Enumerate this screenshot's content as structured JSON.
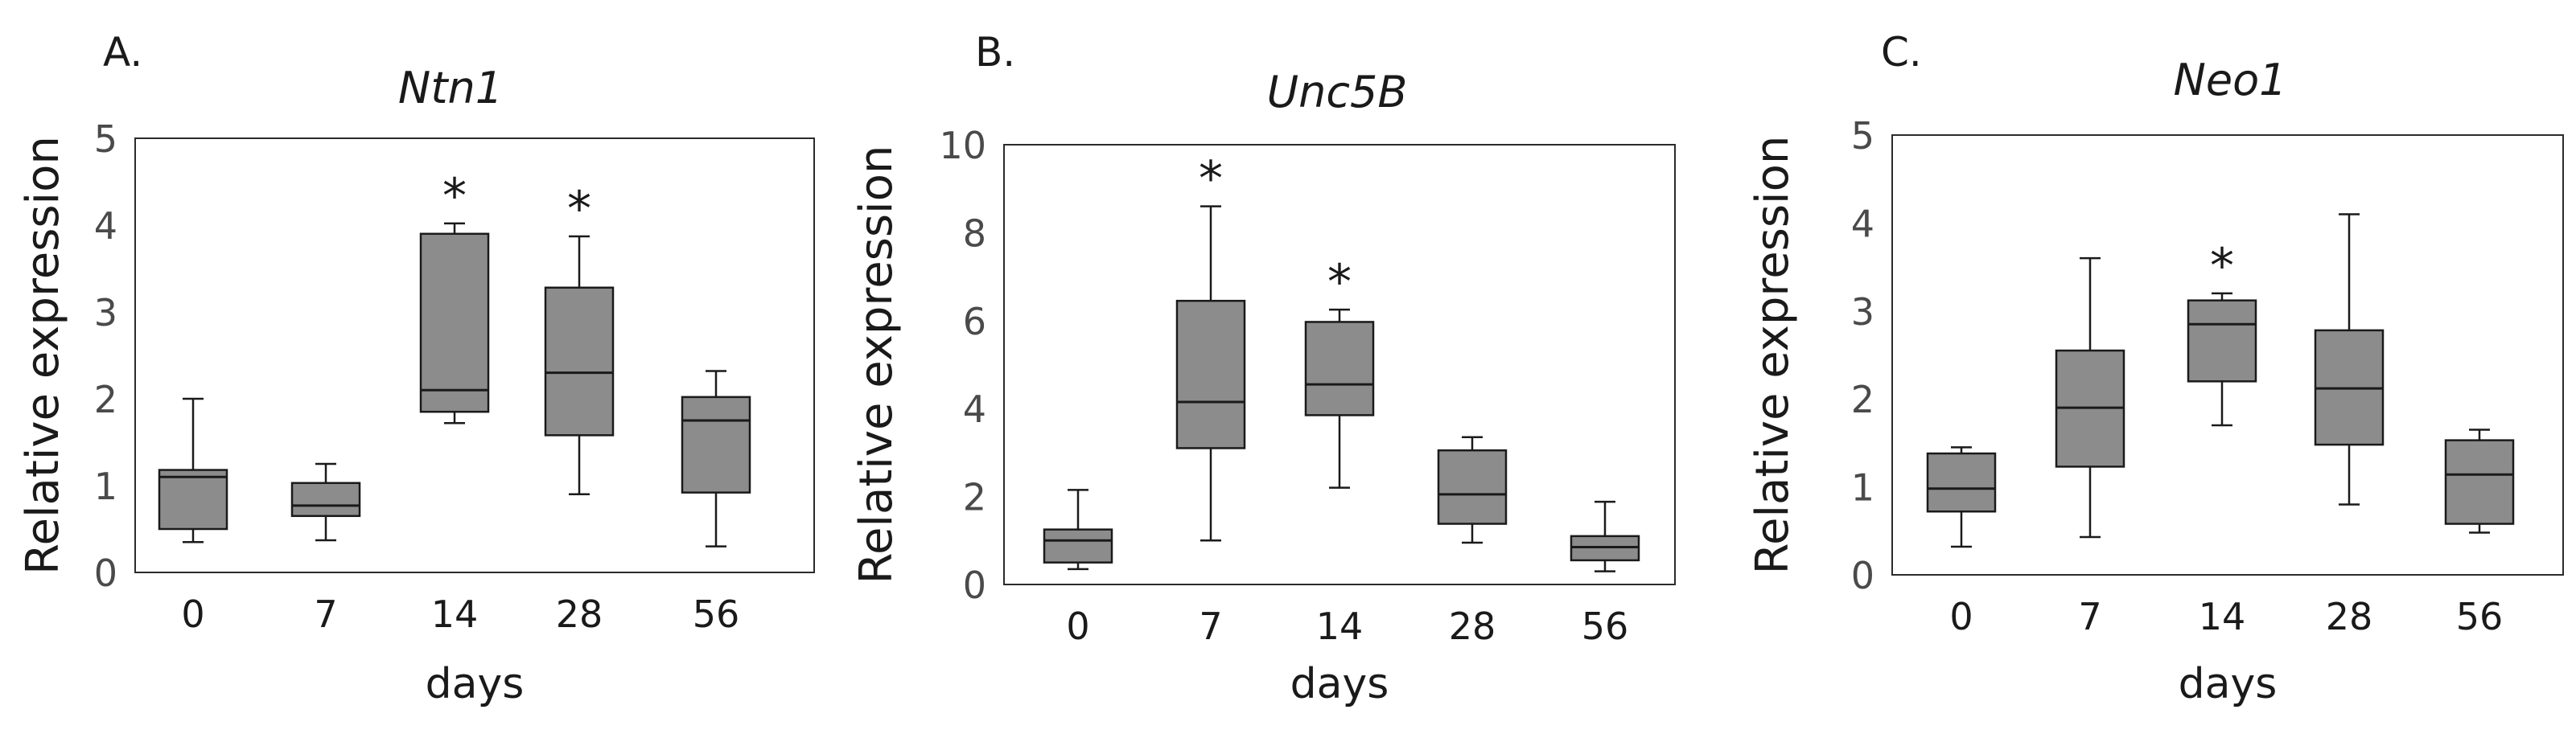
{
  "chart_data": [
    {
      "type": "box",
      "panel_label": "A.",
      "title": "Ntn1",
      "xlabel": "days",
      "ylabel": "Relative expression",
      "ylim": [
        0,
        5
      ],
      "yticks": [
        0,
        1,
        2,
        3,
        4,
        5
      ],
      "categories": [
        "0",
        "7",
        "14",
        "28",
        "56"
      ],
      "boxes": [
        {
          "min": 0.35,
          "q1": 0.5,
          "median": 1.1,
          "q3": 1.18,
          "max": 2.0,
          "sig": ""
        },
        {
          "min": 0.37,
          "q1": 0.65,
          "median": 0.77,
          "q3": 1.03,
          "max": 1.25,
          "sig": ""
        },
        {
          "min": 1.72,
          "q1": 1.85,
          "median": 2.1,
          "q3": 3.9,
          "max": 4.02,
          "sig": "*"
        },
        {
          "min": 0.9,
          "q1": 1.58,
          "median": 2.3,
          "q3": 3.28,
          "max": 3.87,
          "sig": "*"
        },
        {
          "min": 0.3,
          "q1": 0.92,
          "median": 1.75,
          "q3": 2.02,
          "max": 2.32,
          "sig": ""
        }
      ],
      "box_color": "#8c8c8c",
      "frame": true
    },
    {
      "type": "box",
      "panel_label": "B.",
      "title": "Unc5B",
      "xlabel": "days",
      "ylabel": "Relative expression",
      "ylim": [
        0,
        10
      ],
      "yticks": [
        0,
        2,
        4,
        6,
        8,
        10
      ],
      "categories": [
        "0",
        "7",
        "14",
        "28",
        "56"
      ],
      "boxes": [
        {
          "min": 0.35,
          "q1": 0.5,
          "median": 1.0,
          "q3": 1.25,
          "max": 2.15,
          "sig": ""
        },
        {
          "min": 1.0,
          "q1": 3.1,
          "median": 4.15,
          "q3": 6.45,
          "max": 8.6,
          "sig": "*"
        },
        {
          "min": 2.2,
          "q1": 3.85,
          "median": 4.55,
          "q3": 5.97,
          "max": 6.25,
          "sig": "*"
        },
        {
          "min": 0.95,
          "q1": 1.38,
          "median": 2.05,
          "q3": 3.05,
          "max": 3.35,
          "sig": ""
        },
        {
          "min": 0.3,
          "q1": 0.55,
          "median": 0.85,
          "q3": 1.1,
          "max": 1.88,
          "sig": ""
        }
      ],
      "box_color": "#8c8c8c",
      "frame": true
    },
    {
      "type": "box",
      "panel_label": "C.",
      "title": "Neo1",
      "xlabel": "days",
      "ylabel": "Relative expression",
      "ylim": [
        0,
        5
      ],
      "yticks": [
        0,
        1,
        2,
        3,
        4,
        5
      ],
      "categories": [
        "0",
        "7",
        "14",
        "28",
        "56"
      ],
      "boxes": [
        {
          "min": 0.32,
          "q1": 0.72,
          "median": 0.98,
          "q3": 1.38,
          "max": 1.45,
          "sig": ""
        },
        {
          "min": 0.43,
          "q1": 1.23,
          "median": 1.9,
          "q3": 2.55,
          "max": 3.6,
          "sig": ""
        },
        {
          "min": 1.7,
          "q1": 2.2,
          "median": 2.85,
          "q3": 3.12,
          "max": 3.2,
          "sig": "*"
        },
        {
          "min": 0.8,
          "q1": 1.48,
          "median": 2.12,
          "q3": 2.78,
          "max": 4.1,
          "sig": ""
        },
        {
          "min": 0.48,
          "q1": 0.58,
          "median": 1.14,
          "q3": 1.53,
          "max": 1.65,
          "sig": ""
        }
      ],
      "box_color": "#8c8c8c",
      "frame": true
    }
  ]
}
